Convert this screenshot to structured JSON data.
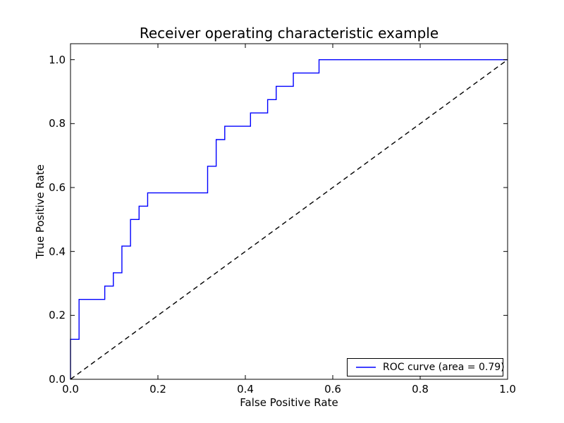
{
  "chart_data": {
    "type": "line",
    "title": "Receiver operating characteristic example",
    "xlabel": "False Positive Rate",
    "ylabel": "True Positive Rate",
    "xlim": [
      0.0,
      1.0
    ],
    "ylim": [
      0.0,
      1.05
    ],
    "xtick_labels": [
      "0.0",
      "0.2",
      "0.4",
      "0.6",
      "0.8",
      "1.0"
    ],
    "ytick_labels": [
      "0.0",
      "0.2",
      "0.4",
      "0.6",
      "0.8",
      "1.0"
    ],
    "grid": false,
    "auc": 0.79,
    "legend": {
      "position": "lower right",
      "entries": [
        {
          "label": "ROC curve (area = 0.79)",
          "color": "#0000ff",
          "style": "solid"
        }
      ]
    },
    "series": [
      {
        "name": "ROC curve",
        "color": "#0000ff",
        "style": "solid",
        "x": [
          0.0,
          0.0,
          0.0196,
          0.0196,
          0.0784,
          0.0784,
          0.098,
          0.098,
          0.1176,
          0.1176,
          0.1373,
          0.1373,
          0.1569,
          0.1569,
          0.1765,
          0.1765,
          0.3137,
          0.3137,
          0.3333,
          0.3333,
          0.3529,
          0.3529,
          0.4118,
          0.4118,
          0.451,
          0.451,
          0.4706,
          0.4706,
          0.5098,
          0.5098,
          0.5686,
          0.5686,
          1.0
        ],
        "y": [
          0.0,
          0.125,
          0.125,
          0.25,
          0.25,
          0.2917,
          0.2917,
          0.3333,
          0.3333,
          0.4167,
          0.4167,
          0.5,
          0.5,
          0.5417,
          0.5417,
          0.5833,
          0.5833,
          0.6667,
          0.6667,
          0.75,
          0.75,
          0.7917,
          0.7917,
          0.8333,
          0.8333,
          0.875,
          0.875,
          0.9167,
          0.9167,
          0.9583,
          0.9583,
          1.0,
          1.0
        ]
      },
      {
        "name": "chance diagonal",
        "color": "#000000",
        "style": "dashed",
        "x": [
          0.0,
          1.0
        ],
        "y": [
          0.0,
          1.0
        ]
      }
    ]
  },
  "colors": {
    "background": "#ffffff",
    "axes": "#000000",
    "roc_line": "#0000ff",
    "diagonal": "#000000"
  }
}
